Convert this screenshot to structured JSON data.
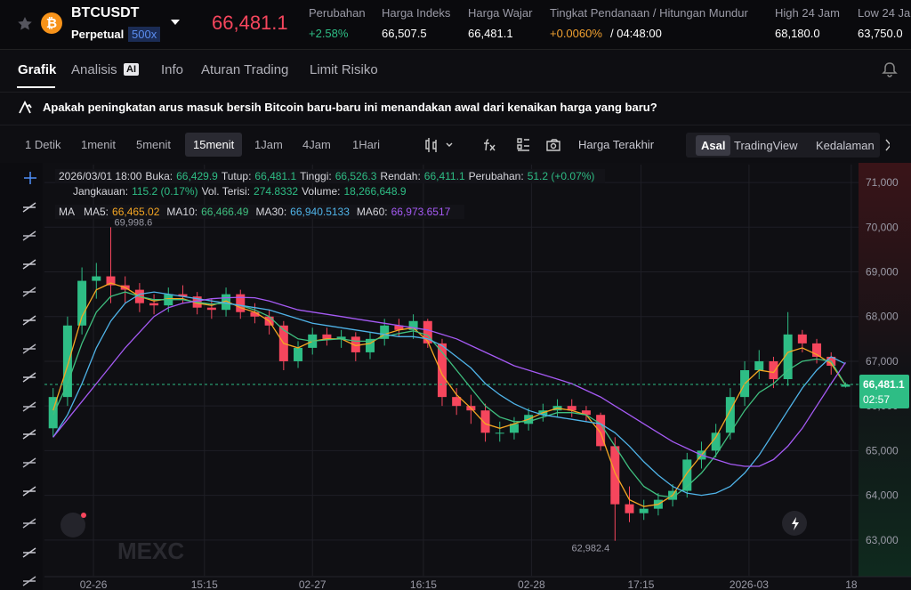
{
  "header": {
    "symbol": "BTCUSDT",
    "contract": "Perpetual",
    "leverage": "500x",
    "price": "66,481.1",
    "stats": [
      {
        "label": "Perubahan",
        "value": "+2.58%"
      },
      {
        "label": "Harga Indeks",
        "value": "66,507.5"
      },
      {
        "label": "Harga Wajar",
        "value": "66,481.1"
      },
      {
        "label": "Tingkat Pendanaan / Hitungan Mundur",
        "value": "+0.0060%",
        "extra": "/ 04:48:00"
      },
      {
        "label": "High 24 Jam",
        "value": "68,180.0"
      },
      {
        "label": "Low 24 Jam",
        "value": "63,750.0"
      }
    ]
  },
  "tabs": {
    "items": [
      "Grafik",
      "Analisis",
      "Info",
      "Aturan Trading",
      "Limit Risiko"
    ],
    "badge": "AI"
  },
  "question": "Apakah peningkatan arus masuk bersih Bitcoin baru-baru ini menandakan awal dari kenaikan harga yang baru?",
  "toolbar": {
    "intervals": [
      "1 Detik",
      "1menit",
      "5menit",
      "15menit",
      "1Jam",
      "4Jam",
      "1Hari"
    ],
    "price_source": "Harga Terakhir",
    "views": [
      "Asal",
      "TradingView",
      "Kedalaman"
    ]
  },
  "info": {
    "time": "2026/03/01 18:00",
    "row1": [
      {
        "label": "Buka:",
        "value": "66,429.9"
      },
      {
        "label": "Tutup:",
        "value": "66,481.1"
      },
      {
        "label": "Tinggi:",
        "value": "66,526.3"
      },
      {
        "label": "Rendah:",
        "value": "66,411.1"
      },
      {
        "label": "Perubahan:",
        "value": "51.2 (+0.07%)"
      }
    ],
    "row2": [
      {
        "label": "Jangkauan:",
        "value": "115.2 (0.17%)"
      },
      {
        "label": "Vol. Terisi:",
        "value": "274.8332"
      },
      {
        "label": "Volume:",
        "value": "18,266,648.9"
      }
    ],
    "ma_title": "MA"
  },
  "watermark": "MEXC",
  "chart_data": {
    "type": "candlestick",
    "xlim": [
      -0.6,
      55.9
    ],
    "xticks": [
      {
        "value": 2.8,
        "label": "02-26"
      },
      {
        "value": 10.5,
        "label": "15:15"
      },
      {
        "value": 18,
        "label": "02-27"
      },
      {
        "value": 25.7,
        "label": "16:15"
      },
      {
        "value": 33.2,
        "label": "02-28"
      },
      {
        "value": 40.8,
        "label": "17:15"
      },
      {
        "value": 48.3,
        "label": "2026-03"
      },
      {
        "value": 55.4,
        "label": "18"
      }
    ],
    "ylim": [
      62200,
      71400
    ],
    "yticks": [
      {
        "value": 63000,
        "label": "63,000"
      },
      {
        "value": 64000,
        "label": "64,000"
      },
      {
        "value": 65000,
        "label": "65,000"
      },
      {
        "value": 66000,
        "label": "66,000"
      },
      {
        "value": 67000,
        "label": "67,000"
      },
      {
        "value": 68000,
        "label": "68,000"
      },
      {
        "value": 69000,
        "label": "69,000"
      },
      {
        "value": 70000,
        "label": "70,000"
      },
      {
        "value": 71000,
        "label": "71,000"
      }
    ],
    "grid": true,
    "up_color": "#2ebd85",
    "down_color": "#f6465d",
    "candles": {
      "open": [
        65500,
        66200,
        67800,
        68800,
        68900,
        68700,
        68600,
        68300,
        68250,
        68500,
        68450,
        68200,
        68150,
        68500,
        68100,
        68000,
        67800,
        67000,
        67300,
        67600,
        67500,
        67550,
        67200,
        67500,
        67800,
        67700,
        67900,
        67400,
        66200,
        66000,
        65900,
        65400,
        65400,
        65600,
        65800,
        65900,
        66000,
        65900,
        65800,
        65100,
        63800,
        63600,
        63700,
        63900,
        64100,
        64800,
        65000,
        65400,
        66200,
        66800,
        67000,
        66600,
        67600,
        67400,
        67100,
        66429.9
      ],
      "high": [
        66400,
        68000,
        69100,
        69200,
        69998.6,
        68900,
        68750,
        68500,
        68650,
        68700,
        68550,
        68400,
        68650,
        68600,
        68300,
        68150,
        67900,
        67450,
        67750,
        67750,
        67700,
        67650,
        67650,
        67950,
        67950,
        68050,
        67950,
        67500,
        66400,
        66250,
        66050,
        65650,
        65750,
        65950,
        66050,
        66150,
        66150,
        66000,
        65850,
        65300,
        64200,
        63900,
        64050,
        64250,
        64950,
        65200,
        65600,
        66400,
        67000,
        67250,
        67100,
        68100,
        67700,
        67500,
        67200,
        66526.3
      ],
      "low": [
        65300,
        66000,
        67600,
        68400,
        68300,
        68300,
        68100,
        68050,
        68100,
        68300,
        68050,
        67950,
        68000,
        67950,
        67850,
        67600,
        66800,
        66850,
        67150,
        67350,
        67300,
        67000,
        67050,
        67350,
        67550,
        67500,
        67300,
        66000,
        65800,
        65600,
        65200,
        65200,
        65250,
        65450,
        65650,
        65750,
        65750,
        65650,
        65000,
        62982.4,
        63400,
        63450,
        63550,
        63750,
        63950,
        64600,
        64850,
        65250,
        66000,
        66600,
        66400,
        66450,
        67200,
        66950,
        66700,
        66411.1
      ],
      "close": [
        66200,
        67800,
        68800,
        68900,
        68700,
        68600,
        68300,
        68250,
        68500,
        68450,
        68200,
        68150,
        68500,
        68100,
        68000,
        67800,
        67000,
        67300,
        67600,
        67500,
        67550,
        67200,
        67500,
        67800,
        67700,
        67900,
        67400,
        66200,
        66000,
        65900,
        65400,
        65400,
        65600,
        65800,
        65900,
        66000,
        65900,
        65800,
        65100,
        63800,
        63600,
        63700,
        63900,
        64100,
        64800,
        65000,
        65400,
        66200,
        66800,
        67000,
        66600,
        67600,
        67400,
        67100,
        66900,
        66481.1
      ]
    },
    "annotations": [
      {
        "label": "69,998.6",
        "value": 69998.6,
        "of": "high"
      },
      {
        "label": "62,982.4",
        "value": 62982.4,
        "of": "low"
      }
    ],
    "series": [
      {
        "name": "MA5:",
        "label": "66,465.02",
        "color": "#f5a623",
        "values": [
          65900,
          66900,
          68000,
          68600,
          68750,
          68650,
          68450,
          68350,
          68400,
          68400,
          68300,
          68250,
          68350,
          68200,
          68100,
          67900,
          67400,
          67300,
          67450,
          67500,
          67500,
          67350,
          67400,
          67600,
          67700,
          67750,
          67450,
          66700,
          66250,
          65950,
          65600,
          65500,
          65600,
          65700,
          65850,
          65950,
          65900,
          65800,
          65400,
          64500,
          63900,
          63750,
          63800,
          64000,
          64500,
          64900,
          65300,
          65900,
          66500,
          66800,
          66750,
          67200,
          67300,
          67150,
          66950,
          66465.02
        ]
      },
      {
        "name": "MA10:",
        "label": "66,466.49",
        "color": "#3fbf7f",
        "values": [
          65800,
          66500,
          67400,
          68100,
          68450,
          68550,
          68450,
          68380,
          68380,
          68380,
          68320,
          68280,
          68300,
          68250,
          68150,
          68000,
          67700,
          67500,
          67450,
          67480,
          67500,
          67450,
          67450,
          67550,
          67620,
          67680,
          67580,
          67200,
          66800,
          66400,
          66000,
          65750,
          65650,
          65650,
          65750,
          65850,
          65850,
          65800,
          65600,
          65100,
          64600,
          64200,
          64000,
          63950,
          64200,
          64500,
          64900,
          65400,
          65900,
          66300,
          66500,
          66800,
          67000,
          67050,
          67000,
          66466.49
        ]
      },
      {
        "name": "MA30:",
        "label": "66,940.5133",
        "color": "#4fb3e8",
        "values": [
          65300,
          65800,
          66500,
          67300,
          67900,
          68300,
          68500,
          68550,
          68500,
          68450,
          68400,
          68350,
          68300,
          68250,
          68200,
          68150,
          68050,
          67950,
          67850,
          67800,
          67750,
          67700,
          67650,
          67600,
          67550,
          67550,
          67500,
          67350,
          67100,
          66850,
          66500,
          66250,
          66050,
          65900,
          65800,
          65750,
          65700,
          65650,
          65600,
          65400,
          65100,
          64750,
          64450,
          64200,
          64050,
          64000,
          64050,
          64200,
          64500,
          64900,
          65400,
          65900,
          66400,
          66800,
          67100,
          66940.5133
        ]
      },
      {
        "name": "MA60:",
        "label": "66,973.6517",
        "color": "#a55af4",
        "values": [
          65300,
          65700,
          66100,
          66500,
          66900,
          67300,
          67650,
          68000,
          68200,
          68300,
          68350,
          68400,
          68420,
          68430,
          68420,
          68350,
          68250,
          68150,
          68100,
          68050,
          68000,
          67950,
          67900,
          67850,
          67800,
          67750,
          67700,
          67600,
          67500,
          67350,
          67200,
          67050,
          66900,
          66800,
          66700,
          66600,
          66500,
          66350,
          66200,
          66000,
          65800,
          65600,
          65400,
          65200,
          65050,
          64900,
          64800,
          64700,
          64650,
          64650,
          64800,
          65100,
          65500,
          66000,
          66500,
          66973.6517
        ]
      }
    ],
    "last_price": {
      "label": "66,481.1",
      "countdown": "02:57"
    }
  }
}
